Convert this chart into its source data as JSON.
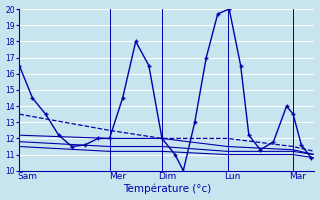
{
  "bg_color": "#c8e4ef",
  "grid_color": "#ffffff",
  "line_color": "#0000aa",
  "xlabel": "Température (°c)",
  "ylim": [
    10,
    20
  ],
  "xlim": [
    0,
    180
  ],
  "day_labels": [
    "Sam",
    "Mer",
    "Dim",
    "Lun",
    "Mar"
  ],
  "day_x": [
    5,
    60,
    90,
    130,
    170
  ],
  "day_vlines": [
    55,
    87,
    127,
    167
  ],
  "main_line": {
    "x": [
      0,
      8,
      16,
      24,
      32,
      40,
      48,
      55,
      63,
      71,
      79,
      87,
      95,
      100,
      107,
      114,
      121,
      128,
      135,
      140,
      147,
      155,
      163,
      167,
      172,
      178
    ],
    "y": [
      16.5,
      14.5,
      13.5,
      12.2,
      11.5,
      11.6,
      12.0,
      12.0,
      14.5,
      18.0,
      16.5,
      12.0,
      11.0,
      10.0,
      13.0,
      17.0,
      19.7,
      20.0,
      16.5,
      12.2,
      11.3,
      11.8,
      14.0,
      13.5,
      11.6,
      10.8
    ]
  },
  "dashed_line": {
    "x": [
      0,
      55,
      87,
      127,
      167,
      180
    ],
    "y": [
      13.5,
      12.5,
      12.0,
      12.0,
      11.5,
      11.2
    ]
  },
  "solid_lines": [
    {
      "x": [
        0,
        55,
        87,
        127,
        167,
        180
      ],
      "y": [
        12.2,
        12.0,
        12.0,
        11.5,
        11.3,
        11.0
      ]
    },
    {
      "x": [
        0,
        55,
        87,
        127,
        167,
        180
      ],
      "y": [
        11.8,
        11.5,
        11.5,
        11.2,
        11.2,
        11.0
      ]
    },
    {
      "x": [
        0,
        55,
        87,
        127,
        167,
        180
      ],
      "y": [
        11.5,
        11.2,
        11.2,
        11.0,
        11.0,
        10.8
      ]
    }
  ]
}
